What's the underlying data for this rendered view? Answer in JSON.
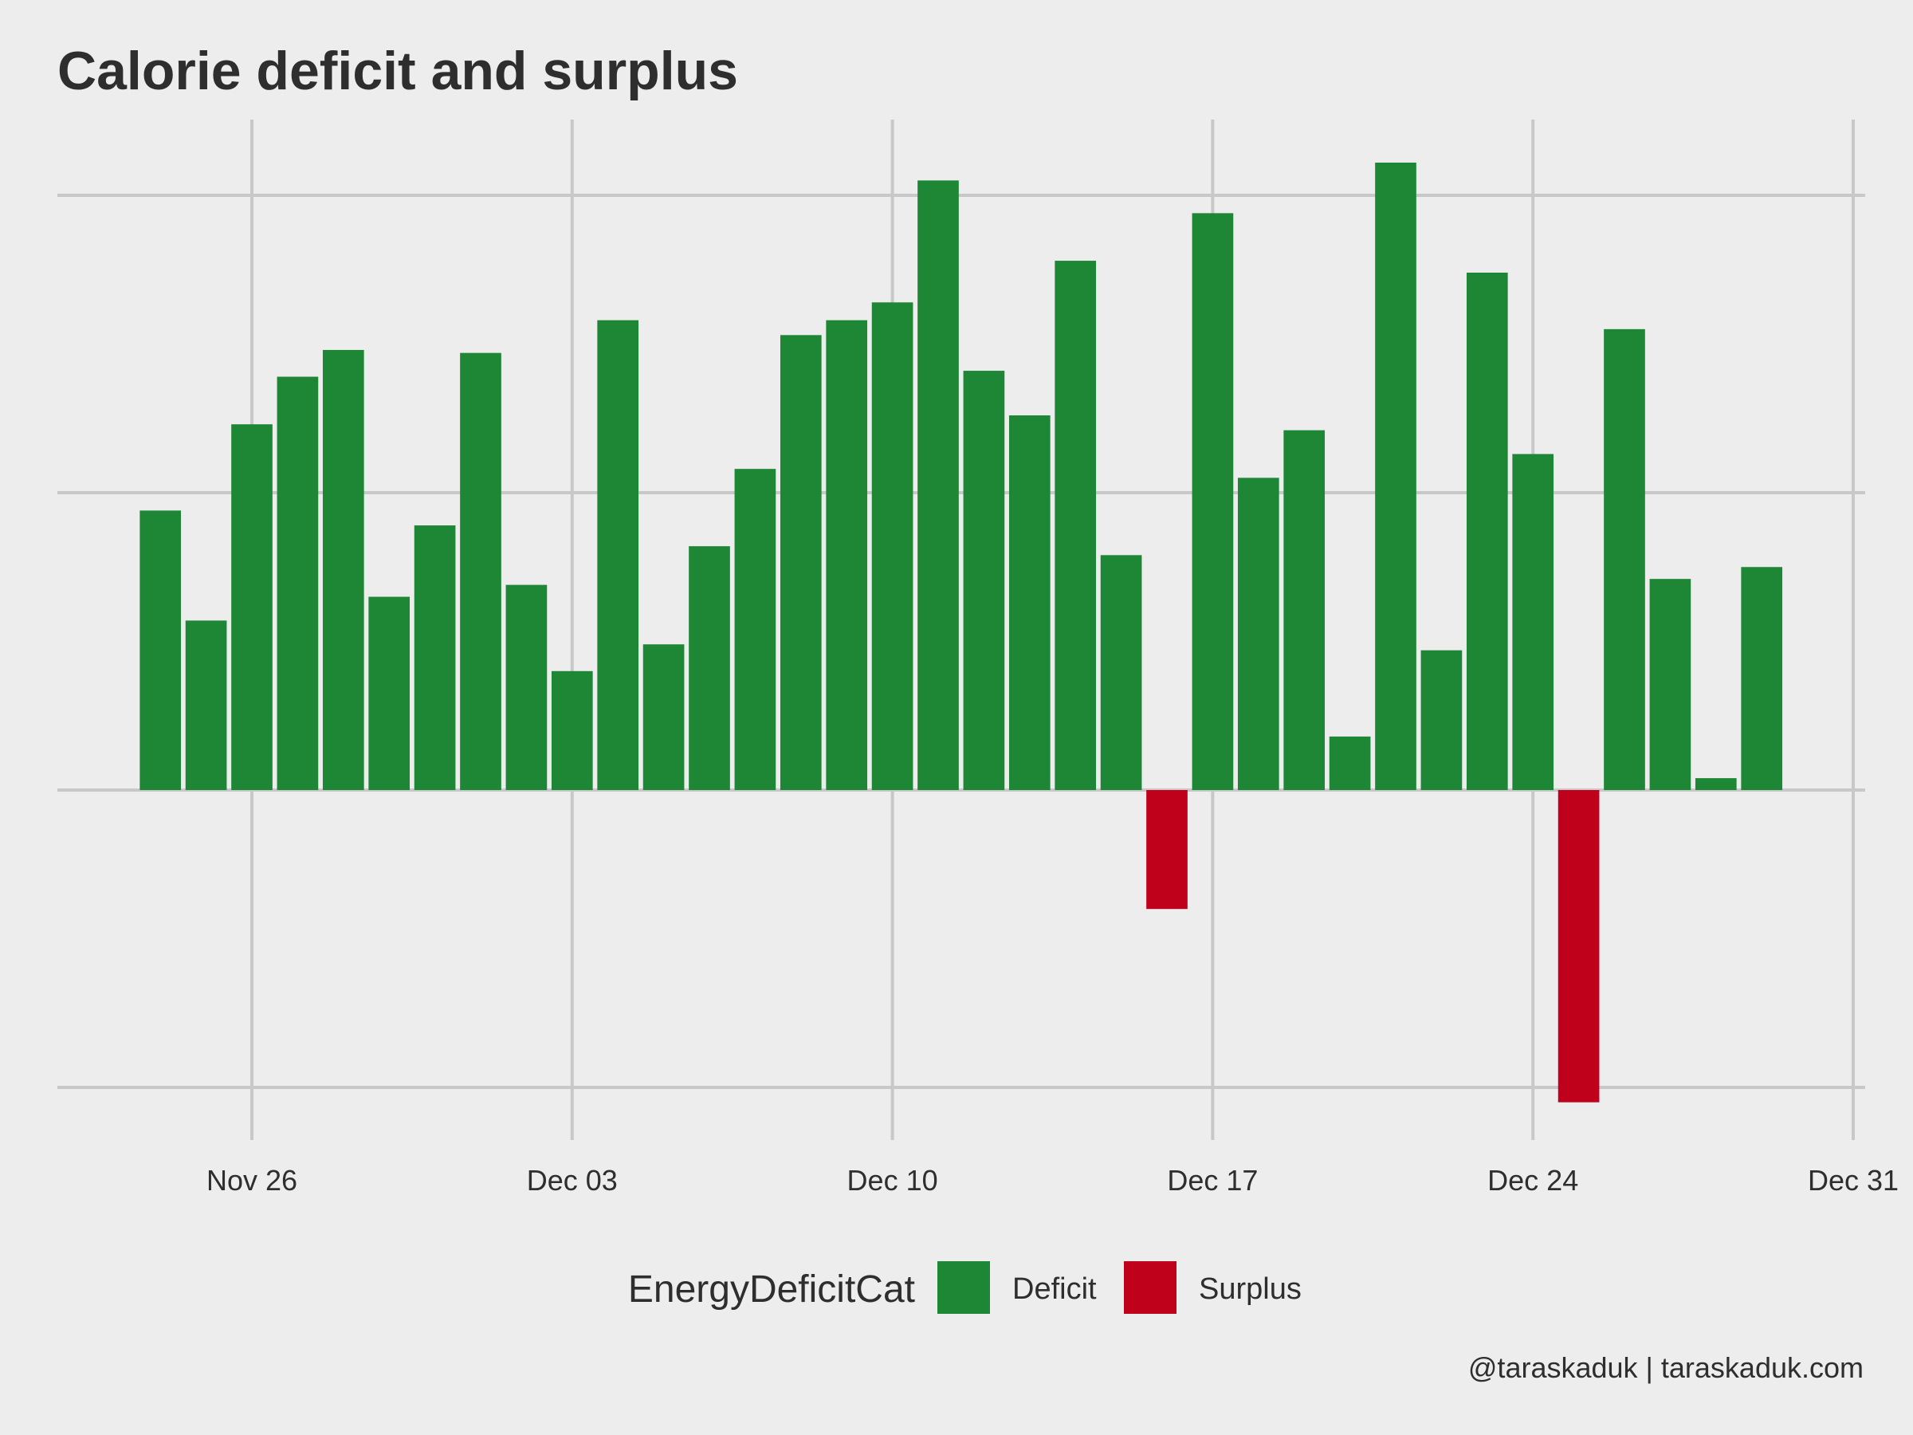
{
  "chart_data": {
    "type": "bar",
    "title": "Calorie deficit and surplus",
    "xlabel": "",
    "ylabel": "",
    "x_axis": {
      "type": "date",
      "range": [
        "2023-11-21",
        "2023-12-31"
      ],
      "ticks": [
        {
          "date": "2023-11-26",
          "label": "Nov 26"
        },
        {
          "date": "2023-12-03",
          "label": "Dec 03"
        },
        {
          "date": "2023-12-10",
          "label": "Dec 10"
        },
        {
          "date": "2023-12-17",
          "label": "Dec 17"
        },
        {
          "date": "2023-12-24",
          "label": "Dec 24"
        },
        {
          "date": "2023-12-31",
          "label": "Dec 31"
        }
      ]
    },
    "y_axis": {
      "tick_labels_shown": false,
      "ylim": [
        -1.1,
        2.05
      ],
      "gridlines": [
        -1,
        0,
        1,
        2
      ]
    },
    "grid": true,
    "legend": {
      "title": "EnergyDeficitCat",
      "position": "bottom",
      "items": [
        {
          "name": "Deficit",
          "color": "#1e8735"
        },
        {
          "name": "Surplus",
          "color": "#c0011c"
        }
      ]
    },
    "colors": {
      "Deficit": "#1e8735",
      "Surplus": "#c0011c",
      "background": "#ededed",
      "grid": "#c8c8c8"
    },
    "bars": [
      {
        "date": "2023-11-24",
        "value": 0.94,
        "category": "Deficit"
      },
      {
        "date": "2023-11-25",
        "value": 0.57,
        "category": "Deficit"
      },
      {
        "date": "2023-11-26",
        "value": 1.23,
        "category": "Deficit"
      },
      {
        "date": "2023-11-27",
        "value": 1.39,
        "category": "Deficit"
      },
      {
        "date": "2023-11-28",
        "value": 1.48,
        "category": "Deficit"
      },
      {
        "date": "2023-11-29",
        "value": 0.65,
        "category": "Deficit"
      },
      {
        "date": "2023-11-30",
        "value": 0.89,
        "category": "Deficit"
      },
      {
        "date": "2023-12-01",
        "value": 1.47,
        "category": "Deficit"
      },
      {
        "date": "2023-12-02",
        "value": 0.69,
        "category": "Deficit"
      },
      {
        "date": "2023-12-03",
        "value": 0.4,
        "category": "Deficit"
      },
      {
        "date": "2023-12-04",
        "value": 1.58,
        "category": "Deficit"
      },
      {
        "date": "2023-12-05",
        "value": 0.49,
        "category": "Deficit"
      },
      {
        "date": "2023-12-06",
        "value": 0.82,
        "category": "Deficit"
      },
      {
        "date": "2023-12-07",
        "value": 1.08,
        "category": "Deficit"
      },
      {
        "date": "2023-12-08",
        "value": 1.53,
        "category": "Deficit"
      },
      {
        "date": "2023-12-09",
        "value": 1.58,
        "category": "Deficit"
      },
      {
        "date": "2023-12-10",
        "value": 1.64,
        "category": "Deficit"
      },
      {
        "date": "2023-12-11",
        "value": 2.05,
        "category": "Deficit"
      },
      {
        "date": "2023-12-12",
        "value": 1.41,
        "category": "Deficit"
      },
      {
        "date": "2023-12-13",
        "value": 1.26,
        "category": "Deficit"
      },
      {
        "date": "2023-12-14",
        "value": 1.78,
        "category": "Deficit"
      },
      {
        "date": "2023-12-15",
        "value": 0.79,
        "category": "Deficit"
      },
      {
        "date": "2023-12-16",
        "value": -0.4,
        "category": "Surplus"
      },
      {
        "date": "2023-12-17",
        "value": 1.94,
        "category": "Deficit"
      },
      {
        "date": "2023-12-18",
        "value": 1.05,
        "category": "Deficit"
      },
      {
        "date": "2023-12-19",
        "value": 1.21,
        "category": "Deficit"
      },
      {
        "date": "2023-12-20",
        "value": 0.18,
        "category": "Deficit"
      },
      {
        "date": "2023-12-21",
        "value": 2.11,
        "category": "Deficit"
      },
      {
        "date": "2023-12-22",
        "value": 0.47,
        "category": "Deficit"
      },
      {
        "date": "2023-12-23",
        "value": 1.74,
        "category": "Deficit"
      },
      {
        "date": "2023-12-24",
        "value": 1.13,
        "category": "Deficit"
      },
      {
        "date": "2023-12-25",
        "value": -1.05,
        "category": "Surplus"
      },
      {
        "date": "2023-12-26",
        "value": 1.55,
        "category": "Deficit"
      },
      {
        "date": "2023-12-27",
        "value": 0.71,
        "category": "Deficit"
      },
      {
        "date": "2023-12-28",
        "value": 0.04,
        "category": "Deficit"
      },
      {
        "date": "2023-12-29",
        "value": 0.75,
        "category": "Deficit"
      }
    ]
  },
  "caption": "@taraskaduk | taraskaduk.com"
}
